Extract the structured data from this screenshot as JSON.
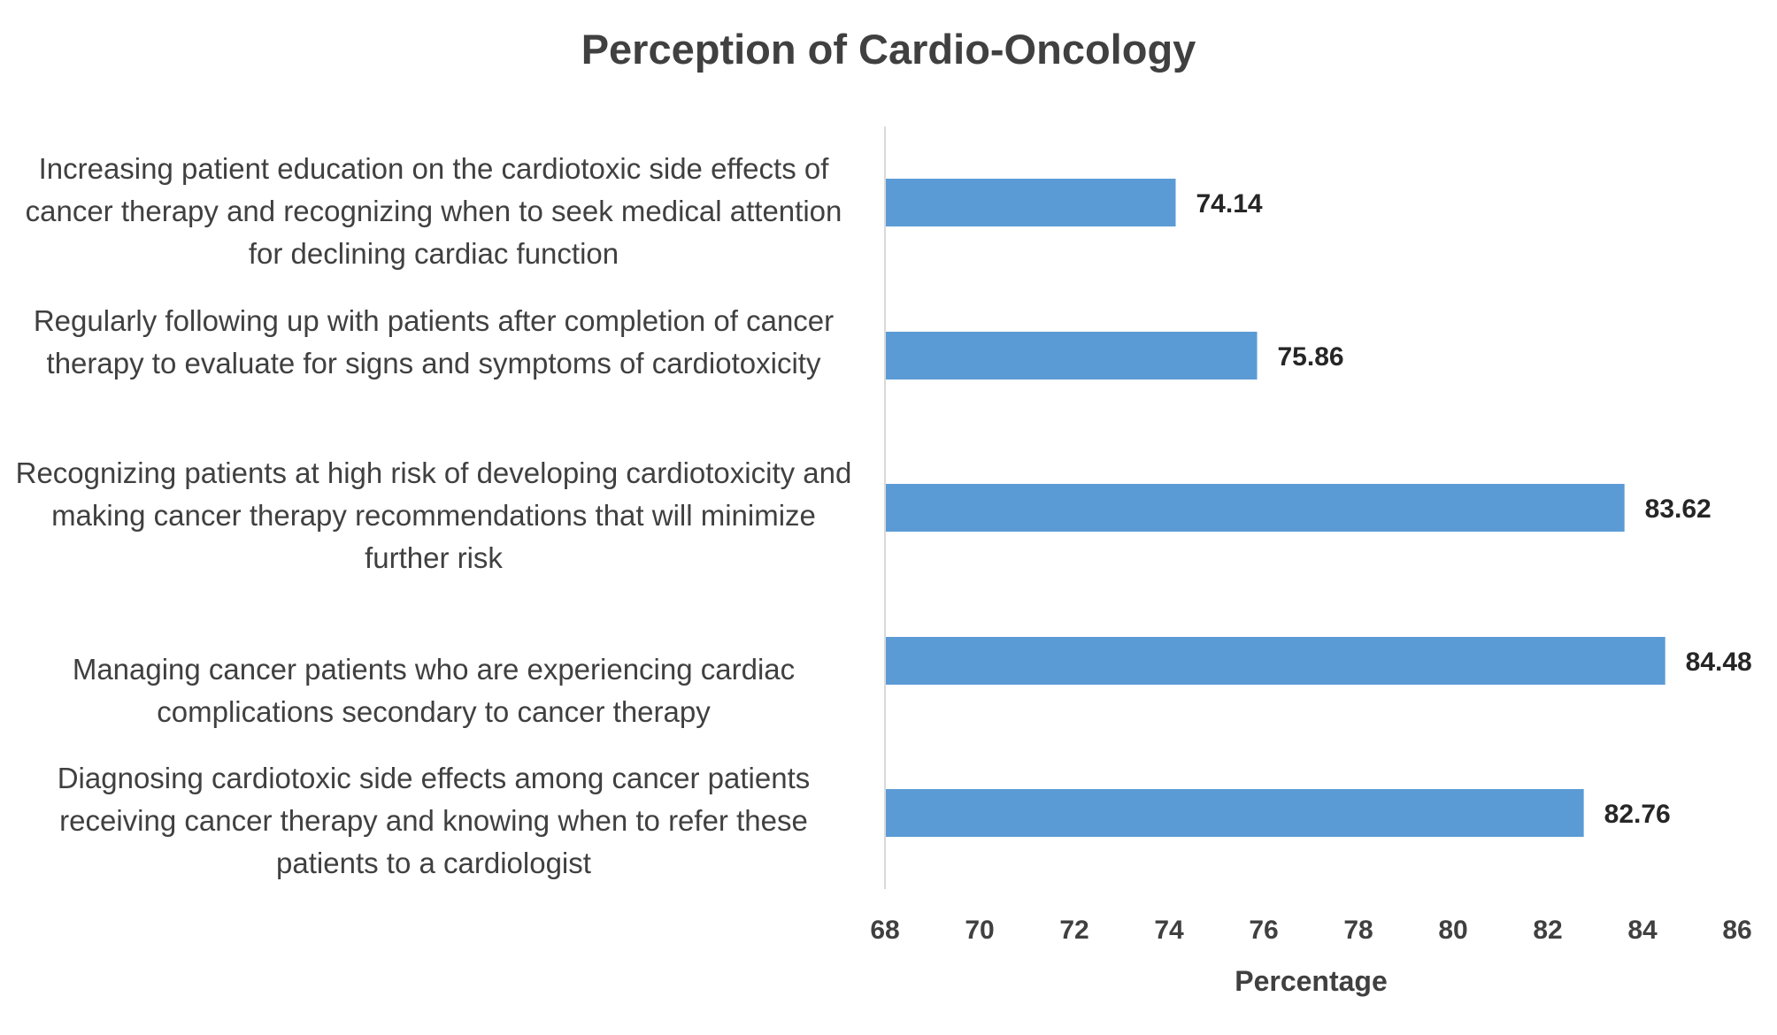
{
  "chart_data": {
    "type": "bar",
    "orientation": "horizontal",
    "title": "Perception of Cardio-Oncology",
    "xlabel": "Percentage",
    "ylabel": "",
    "xlim": [
      68,
      86
    ],
    "xticks": [
      68,
      70,
      72,
      74,
      76,
      78,
      80,
      82,
      84,
      86
    ],
    "gridlines": false,
    "bar_color": "#5B9BD5",
    "categories": [
      "Increasing patient education on the cardiotoxic side effects of cancer therapy and recognizing when to seek medical attention for declining cardiac function",
      "Regularly following up with patients after completion of cancer therapy to evaluate for signs and symptoms of cardiotoxicity",
      "Recognizing patients at high risk of developing cardiotoxicity and making cancer therapy recommendations that will minimize further risk",
      "Managing cancer patients who are experiencing cardiac complications secondary to cancer therapy",
      "Diagnosing cardiotoxic side effects among cancer patients receiving cancer therapy and knowing when to refer these patients to a cardiologist"
    ],
    "values": [
      74.14,
      75.86,
      83.62,
      84.48,
      82.76
    ],
    "data_labels": [
      "74.14",
      "75.86",
      "83.62",
      "84.48",
      "82.76"
    ]
  }
}
